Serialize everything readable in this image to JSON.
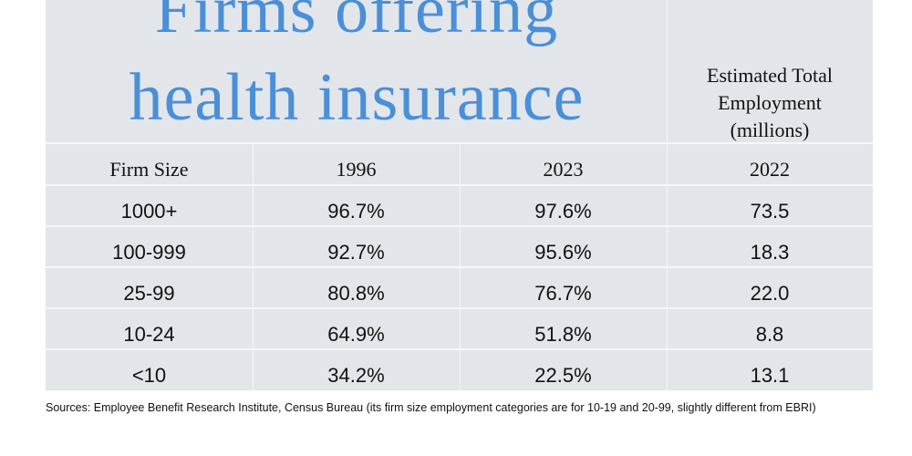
{
  "chart_data": {
    "type": "table",
    "title_lines": [
      "Firms offering",
      "health insurance"
    ],
    "employment_header_lines": [
      "Estimated Total",
      "Employment",
      "(millions)"
    ],
    "columns": [
      "Firm Size",
      "1996",
      "2023",
      "2022"
    ],
    "rows": [
      [
        "1000+",
        "96.7%",
        "97.6%",
        "73.5"
      ],
      [
        "100-999",
        "92.7%",
        "95.6%",
        "18.3"
      ],
      [
        "25-99",
        "80.8%",
        "76.7%",
        "22.0"
      ],
      [
        "10-24",
        "64.9%",
        "51.8%",
        "8.8"
      ],
      [
        "<10",
        "34.2%",
        "22.5%",
        "13.1"
      ]
    ]
  },
  "footer": {
    "sources": "Sources: Employee Benefit Research Institute, Census Bureau (its firm size employment categories are for 10-19 and 20-99, slightly different from EBRI)"
  },
  "colors": {
    "title": "#4a8fd8",
    "table_background": "#e2e6eb",
    "grid_lines": "#f4f6f8"
  }
}
